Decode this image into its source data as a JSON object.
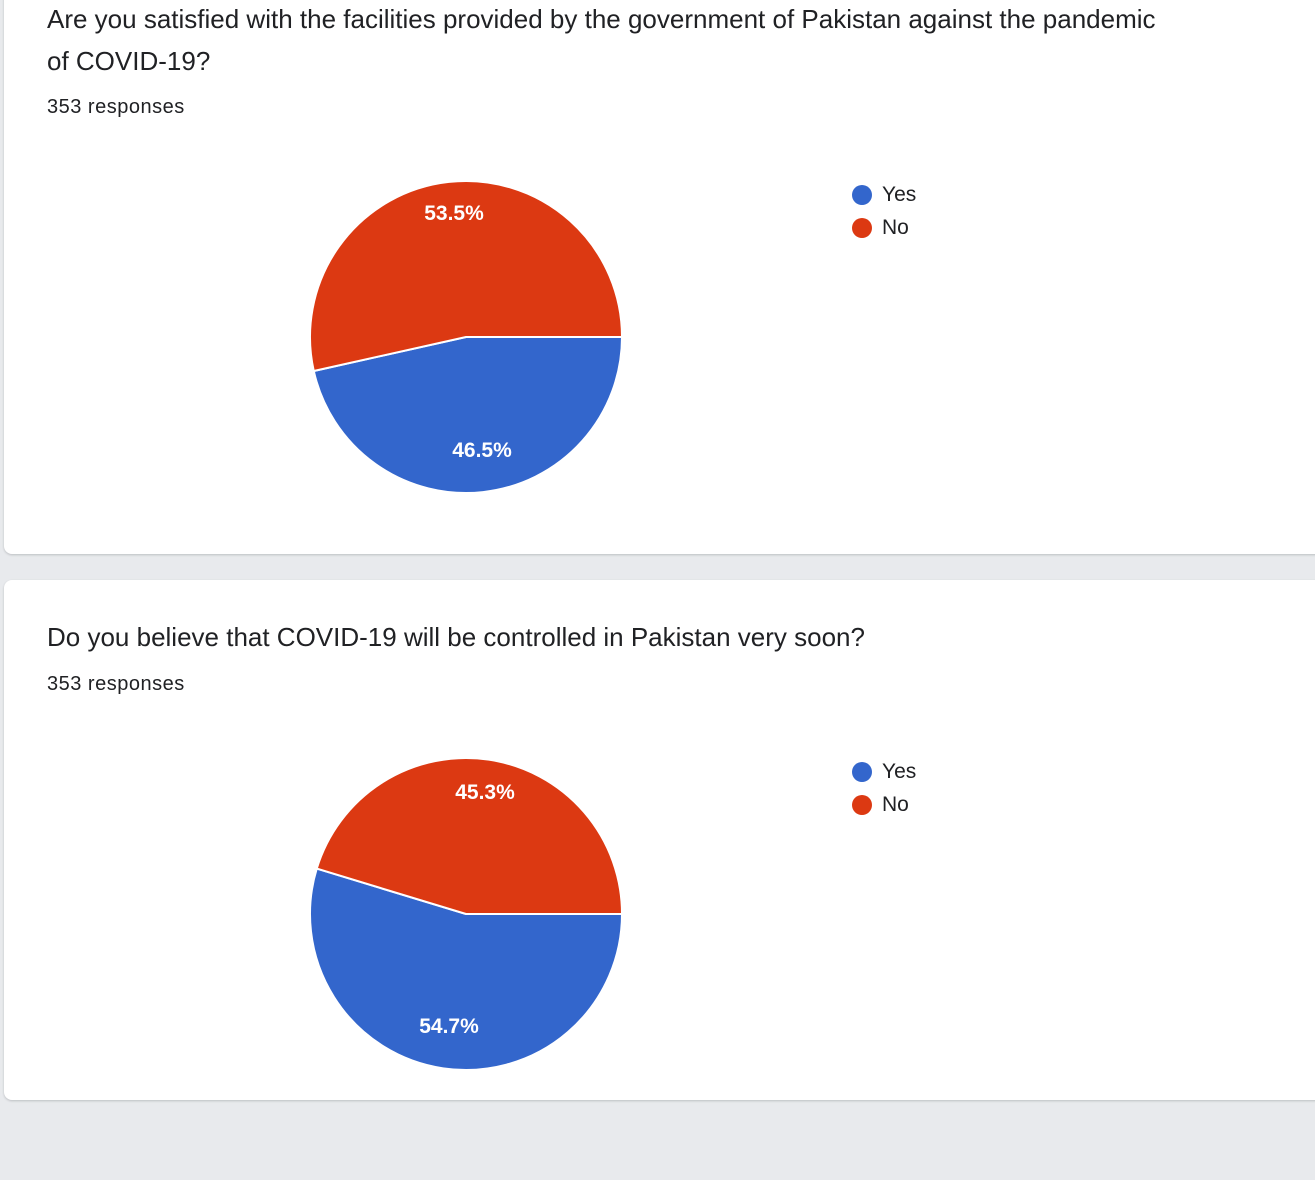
{
  "colors": {
    "yes": "#3366cc",
    "no": "#dc3912"
  },
  "chart_data": [
    {
      "type": "pie",
      "title": "Are you satisfied with the facilities provided by the government of Pakistan against the pandemic of COVID-19?",
      "subtitle": "353 responses",
      "categories": [
        "Yes",
        "No"
      ],
      "values": [
        46.5,
        53.5
      ],
      "value_labels": [
        "46.5%",
        "53.5%"
      ],
      "legend_position": "right"
    },
    {
      "type": "pie",
      "title": "Do you believe that COVID-19 will be controlled in Pakistan very soon?",
      "subtitle": "353 responses",
      "categories": [
        "Yes",
        "No"
      ],
      "values": [
        54.7,
        45.3
      ],
      "value_labels": [
        "54.7%",
        "45.3%"
      ],
      "legend_position": "right"
    }
  ]
}
